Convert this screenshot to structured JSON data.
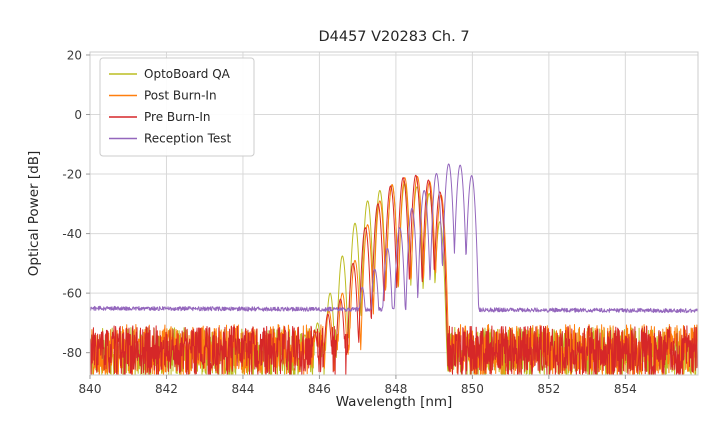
{
  "style": {
    "background": "#ffffff",
    "grid_color": "#d9d9d9",
    "spine_color": "#cccccc",
    "text_color": "#262626",
    "legend_border": "#cccccc"
  },
  "chart_data": {
    "type": "line",
    "title": "D4457 V20283 Ch. 7",
    "xlabel": "Wavelength [nm]",
    "ylabel": "Optical Power [dB]",
    "xlim": [
      840,
      855.9
    ],
    "ylim": [
      -87.5,
      21
    ],
    "x_ticks": [
      840,
      842,
      844,
      846,
      848,
      850,
      852,
      854
    ],
    "y_ticks": [
      20,
      0,
      -20,
      -40,
      -60,
      -80
    ],
    "grid": true,
    "legend_position": "upper left",
    "series": [
      {
        "name": "OptoBoard QA",
        "color": "#bcbd22",
        "noise_floor_db": -80,
        "noise_amp_db": 8.5,
        "noise_seed": 11,
        "noise_slope_db_per_nm": 0,
        "mode_halfwidth_nm": 0.162,
        "mode_valley_depth_db": 35,
        "modes": [
          [
            845.62,
            -74
          ],
          [
            845.95,
            -70
          ],
          [
            846.28,
            -60
          ],
          [
            846.6,
            -47.5
          ],
          [
            846.93,
            -36.5
          ],
          [
            847.26,
            -29
          ],
          [
            847.58,
            -25.5
          ],
          [
            847.9,
            -23.8
          ],
          [
            848.23,
            -23.2
          ],
          [
            848.55,
            -24.3
          ],
          [
            848.87,
            -26.5
          ],
          [
            849.15,
            -36
          ]
        ]
      },
      {
        "name": "Post Burn-In",
        "color": "#ff7f0e",
        "noise_floor_db": -79,
        "noise_amp_db": 8.5,
        "noise_seed": 22,
        "noise_slope_db_per_nm": 0,
        "mode_halfwidth_nm": 0.162,
        "mode_valley_depth_db": 35,
        "modes": [
          [
            845.92,
            -73
          ],
          [
            846.25,
            -66
          ],
          [
            846.6,
            -60
          ],
          [
            846.93,
            -49
          ],
          [
            847.26,
            -37
          ],
          [
            847.58,
            -29
          ],
          [
            847.9,
            -23.5
          ],
          [
            848.23,
            -21.2
          ],
          [
            848.56,
            -20.8
          ],
          [
            848.88,
            -22.5
          ],
          [
            849.18,
            -27
          ]
        ]
      },
      {
        "name": "Pre Burn-In",
        "color": "#d62728",
        "noise_floor_db": -79.5,
        "noise_amp_db": 8.5,
        "noise_seed": 33,
        "noise_slope_db_per_nm": 0,
        "mode_halfwidth_nm": 0.162,
        "mode_valley_depth_db": 35,
        "modes": [
          [
            845.88,
            -73
          ],
          [
            846.22,
            -67
          ],
          [
            846.55,
            -62
          ],
          [
            846.88,
            -50
          ],
          [
            847.2,
            -38
          ],
          [
            847.53,
            -30
          ],
          [
            847.86,
            -24
          ],
          [
            848.19,
            -21.2
          ],
          [
            848.52,
            -20.4
          ],
          [
            848.85,
            -22
          ],
          [
            849.15,
            -26
          ]
        ]
      },
      {
        "name": "Reception Test",
        "color": "#9467bd",
        "noise_floor_db": -65.1,
        "noise_amp_db": 0.7,
        "noise_seed": 44,
        "noise_slope_db_per_nm": -0.05,
        "mode_halfwidth_nm": 0.162,
        "mode_valley_depth_db": 35,
        "modes": [
          [
            847.12,
            -58
          ],
          [
            847.45,
            -52
          ],
          [
            847.78,
            -45
          ],
          [
            848.1,
            -38
          ],
          [
            848.42,
            -31.5
          ],
          [
            848.74,
            -25.5
          ],
          [
            849.06,
            -19.8
          ],
          [
            849.38,
            -16.6
          ],
          [
            849.68,
            -17.0
          ],
          [
            849.98,
            -20.5
          ]
        ]
      }
    ]
  }
}
